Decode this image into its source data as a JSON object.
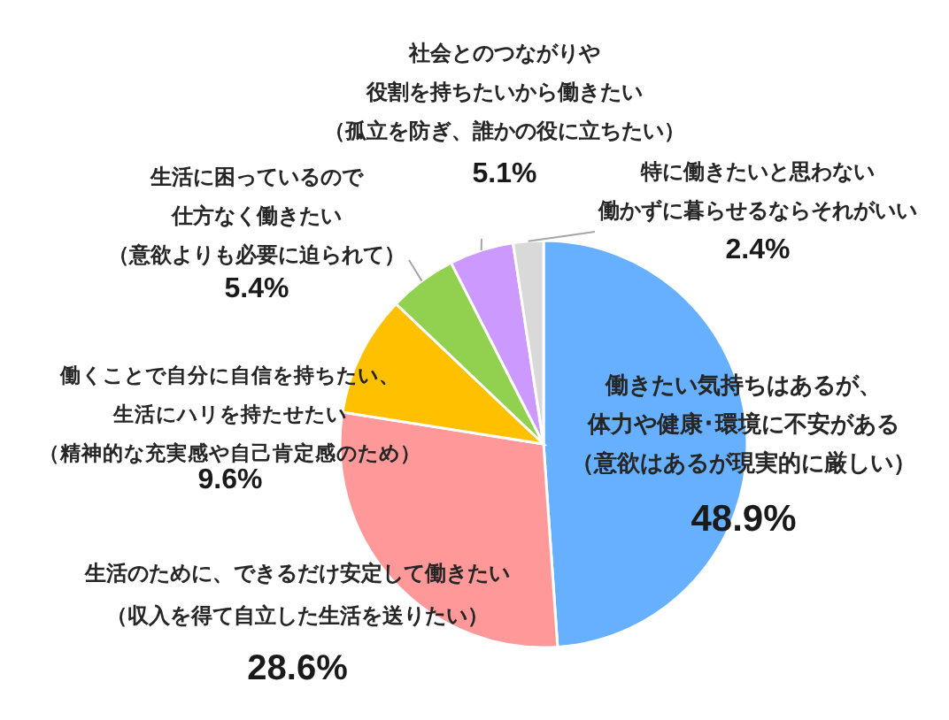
{
  "chart_data": {
    "type": "pie",
    "categories": [
      "働きたい気持ちはあるが、体力や健康･環境に不安がある（意欲はあるが現実的に厳しい）",
      "生活のために、できるだけ安定して働きたい（収入を得て自立した生活を送りたい）",
      "働くことで自分に自信を持ちたい、生活にハリを持たせたい（精神的な充実感や自己肯定感のため）",
      "生活に困っているので仕方なく働きたい（意欲よりも必要に迫られて）",
      "社会とのつながりや役割を持ちたいから働きたい（孤立を防ぎ、誰かの役に立ちたい）",
      "特に働きたいと思わない働かずに暮らせるならそれがいい"
    ],
    "values": [
      48.9,
      28.6,
      9.6,
      5.4,
      5.1,
      2.4
    ],
    "value_labels": [
      "48.9%",
      "28.6%",
      "9.6%",
      "5.4%",
      "5.1%",
      "2.4%"
    ],
    "colors": [
      "#66b0ff",
      "#ff9999",
      "#ffc000",
      "#92d050",
      "#cc99ff",
      "#d9d9d9"
    ]
  }
}
